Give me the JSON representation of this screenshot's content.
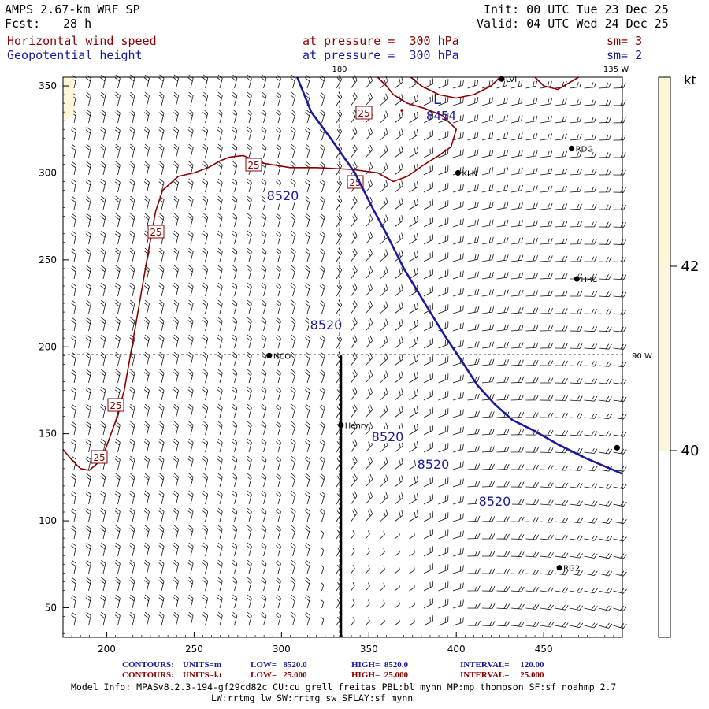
{
  "header": {
    "model": "AMPS 2.67-km WRF SP",
    "fcst_label": "Fcst:",
    "fcst_value": "28 h",
    "init": "Init: 00 UTC Tue 23 Dec 25",
    "valid": "Valid: 04 UTC Wed 24 Dec 25",
    "field1_name": "Horizontal wind speed",
    "field1_level": "at pressure =  300 hPa",
    "field1_sm": "sm= 3",
    "field2_name": "Geopotential height",
    "field2_level": "at pressure =  300 hPa",
    "field2_sm": "sm= 2"
  },
  "map": {
    "x_axis": {
      "range": [
        175,
        495
      ],
      "ticks": [
        "200",
        "250",
        "300",
        "350",
        "400",
        "450"
      ]
    },
    "y_axis": {
      "range": [
        33,
        355
      ],
      "ticks": [
        "50",
        "100",
        "150",
        "200",
        "250",
        "300",
        "350"
      ]
    },
    "meridians": {
      "lon_180": "180",
      "lon_135w": "135 W",
      "lon_90w": "90 W"
    },
    "stations": [
      {
        "name": "LVI",
        "x": 426,
        "y": 354
      },
      {
        "name": "RDG",
        "x": 466,
        "y": 314
      },
      {
        "name": "KLN",
        "x": 401,
        "y": 300
      },
      {
        "name": "HRC",
        "x": 469,
        "y": 239
      },
      {
        "name": "NCO",
        "x": 293,
        "y": 195
      },
      {
        "name": "Henry",
        "x": 334,
        "y": 155
      },
      {
        "name": "",
        "x": 492,
        "y": 142
      },
      {
        "name": "RG2",
        "x": 459,
        "y": 73
      }
    ],
    "low_marker": "L",
    "low_value": "8454",
    "height_contour": {
      "value": 8520,
      "color": "#1a1a9c",
      "label": "8520",
      "points": [
        [
          309,
          355
        ],
        [
          317,
          335
        ],
        [
          328,
          320
        ],
        [
          342,
          300
        ],
        [
          352,
          280
        ],
        [
          360,
          265
        ],
        [
          370,
          245
        ],
        [
          382,
          225
        ],
        [
          393,
          207
        ],
        [
          403,
          192
        ],
        [
          412,
          178
        ],
        [
          422,
          167
        ],
        [
          432,
          158
        ],
        [
          444,
          152
        ],
        [
          458,
          144
        ],
        [
          474,
          136
        ],
        [
          495,
          127
        ]
      ],
      "label_points": [
        [
          302,
          280
        ],
        [
          358,
          210
        ],
        [
          369,
          148
        ],
        [
          380,
          139
        ],
        [
          407,
          126
        ]
      ]
    },
    "speed_contours": {
      "value": 25,
      "color": "#8b0000",
      "label": "25",
      "segments": [
        [
          [
            175,
            141
          ],
          [
            180,
            135
          ],
          [
            185,
            130
          ],
          [
            190,
            129
          ],
          [
            197,
            135
          ],
          [
            205,
            157
          ],
          [
            210,
            175
          ],
          [
            217,
            215
          ],
          [
            223,
            250
          ],
          [
            228,
            278
          ],
          [
            232,
            290
          ],
          [
            241,
            298
          ],
          [
            250,
            300
          ],
          [
            258,
            303
          ],
          [
            265,
            307
          ],
          [
            270,
            309
          ],
          [
            278,
            310
          ],
          [
            287,
            306
          ],
          [
            293,
            305
          ],
          [
            305,
            303
          ],
          [
            320,
            303
          ],
          [
            340,
            302
          ],
          [
            355,
            300
          ],
          [
            364,
            295
          ],
          [
            372,
            298
          ],
          [
            382,
            305
          ],
          [
            390,
            310
          ],
          [
            397,
            315
          ],
          [
            400,
            325
          ],
          [
            392,
            333
          ],
          [
            382,
            337
          ],
          [
            372,
            340
          ],
          [
            364,
            345
          ],
          [
            360,
            350
          ],
          [
            355,
            355
          ]
        ],
        [
          [
            374,
            355
          ],
          [
            380,
            350
          ],
          [
            390,
            345
          ],
          [
            400,
            343
          ],
          [
            410,
            345
          ],
          [
            420,
            350
          ],
          [
            425,
            355
          ]
        ],
        [
          [
            445,
            355
          ],
          [
            450,
            350
          ],
          [
            458,
            348
          ],
          [
            465,
            352
          ],
          [
            470,
            355
          ]
        ]
      ],
      "label_positions": [
        [
          181,
          153
        ],
        [
          166,
          147
        ],
        [
          212,
          264
        ],
        [
          282,
          304
        ],
        [
          320,
          339
        ],
        [
          344,
          306
        ]
      ]
    },
    "section_line": {
      "from": [
        334,
        195
      ],
      "to": [
        334,
        33
      ],
      "color": "#000000"
    }
  },
  "colorbar": {
    "unit": "kt",
    "ticks": [
      "42",
      "40"
    ],
    "bands": [
      {
        "value": 42,
        "color": "#fdf7d8"
      },
      {
        "value": 40,
        "color": "#fbf6dc"
      },
      {
        "value": 38,
        "color": "#ffffff"
      }
    ]
  },
  "footer": {
    "contours_label": "CONTOURS:",
    "blue_units": "UNITS=m",
    "blue_low": "LOW=   8520.0",
    "blue_high": "HIGH=  8520.0",
    "blue_interval": "INTERVAL=     120.00",
    "red_units": "UNITS=kt",
    "red_low": "LOW=   25.000",
    "red_high": "HIGH=  25.000",
    "red_interval": "INTERVAL=     25.000",
    "model_info": "Model Info: MPASv8.2.3-194-gf29cd82c CU:cu_grell_freitas PBL:bl_mynn MP:mp_thompson SF:sf_noahmp 2.7",
    "model_info_2": "LW:rrtmg_lw SW:rrtmg_sw SFLAY:sf_mynn"
  }
}
